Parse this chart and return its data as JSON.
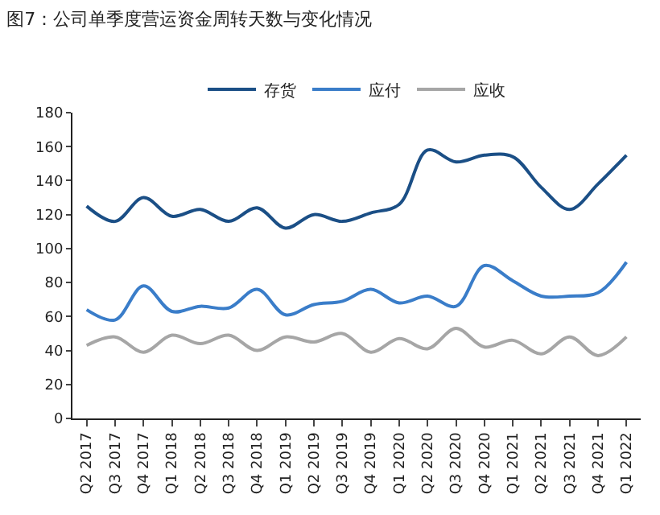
{
  "chart_data": {
    "type": "line",
    "title": "图7：公司单季度营运资金周转天数与变化情况",
    "categories": [
      "Q2 2017",
      "Q3 2017",
      "Q4 2017",
      "Q1 2018",
      "Q2 2018",
      "Q3 2018",
      "Q4 2018",
      "Q1 2019",
      "Q2 2019",
      "Q3 2019",
      "Q4 2019",
      "Q1 2020",
      "Q2 2020",
      "Q3 2020",
      "Q4 2020",
      "Q1 2021",
      "Q2 2021",
      "Q3 2021",
      "Q4 2021",
      "Q1 2022"
    ],
    "series": [
      {
        "name": "存货",
        "color": "#1b4f86",
        "values": [
          125,
          116,
          130,
          119,
          123,
          116,
          124,
          112,
          120,
          116,
          121,
          126,
          158,
          151,
          155,
          154,
          136,
          123,
          138,
          155
        ]
      },
      {
        "name": "应付",
        "color": "#3a7dc9",
        "values": [
          64,
          58,
          78,
          63,
          66,
          65,
          76,
          61,
          67,
          69,
          76,
          68,
          72,
          66,
          90,
          81,
          72,
          72,
          74,
          92
        ]
      },
      {
        "name": "应收",
        "color": "#a6a6a6",
        "values": [
          43,
          48,
          39,
          49,
          44,
          49,
          40,
          48,
          45,
          50,
          39,
          47,
          41,
          53,
          42,
          46,
          38,
          48,
          37,
          48
        ]
      }
    ],
    "ylim": [
      0,
      180
    ],
    "yticks": [
      0,
      20,
      40,
      60,
      80,
      100,
      120,
      140,
      160,
      180
    ],
    "legend": "top",
    "line_style": "solid",
    "marker": "none"
  }
}
